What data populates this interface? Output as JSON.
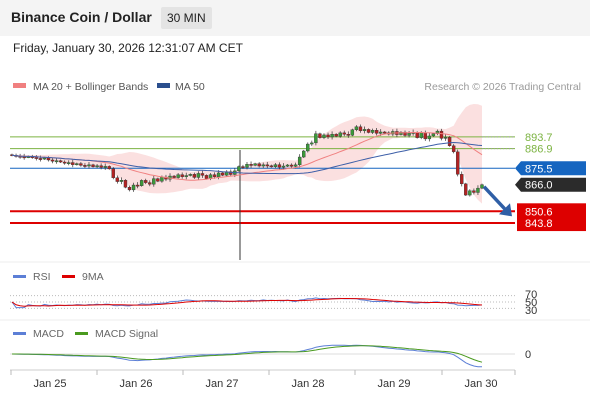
{
  "header": {
    "title": "Binance Coin / Dollar",
    "interval": "30 MIN"
  },
  "datetime": "Friday, January 30, 2026 12:31:07 AM CET",
  "legend": {
    "items": [
      {
        "label": "MA 20 + Bollinger Bands",
        "color": "#f08080"
      },
      {
        "label": "MA 50",
        "color": "#2b4f8e"
      }
    ],
    "credit": "Research © 2026 Trading Central"
  },
  "colors": {
    "up": "#3a9a3a",
    "down": "#b22222",
    "resistance": "#7cb342",
    "pivot": "#1565c0",
    "support": "#dd0000",
    "bands": "#f7c6c6",
    "ma50": "#3d5fa8"
  },
  "chart_data": {
    "type": "candlestick",
    "x_ticks": [
      "Jan 25",
      "Jan 26",
      "Jan 27",
      "Jan 28",
      "Jan 29",
      "Jan 30"
    ],
    "ylim": [
      834,
      915
    ],
    "closes": [
      883,
      882.5,
      882.2,
      881.9,
      882.3,
      881.8,
      881.2,
      880.9,
      881.5,
      880.3,
      879.6,
      879.9,
      879.1,
      878.4,
      878.8,
      877.6,
      878.2,
      877.2,
      876.8,
      877.5,
      876.4,
      877.0,
      876.0,
      876.6,
      875.2,
      870.0,
      867.8,
      868.6,
      864.5,
      863.0,
      865.8,
      865.4,
      868.5,
      867.2,
      866.3,
      869.5,
      868.0,
      870.4,
      869.2,
      871.0,
      870.1,
      871.8,
      870.6,
      871.3,
      872.0,
      870.2,
      872.5,
      871.4,
      869.5,
      871.8,
      870.6,
      872.8,
      871.5,
      873.5,
      871.9,
      874.0,
      876.5,
      876.0,
      877.8,
      877.2,
      878.1,
      876.8,
      877.5,
      877.0,
      876.4,
      877.6,
      876.1,
      876.8,
      877.4,
      876.6,
      877.5,
      882.0,
      885.5,
      889.5,
      890.2,
      895.5,
      893.2,
      894.8,
      893.6,
      895.2,
      894.0,
      896.0,
      895.2,
      894.6,
      897.8,
      899.5,
      897.2,
      898.0,
      896.2,
      897.5,
      895.7,
      896.5,
      896.0,
      895.3,
      896.8,
      895.0,
      896.4,
      894.5,
      895.8,
      896.3,
      893.2,
      896.0,
      892.5,
      894.2,
      895.5,
      897.0,
      892.8,
      893.5,
      888.5,
      885.0,
      872.0,
      866.5,
      860.0,
      862.5,
      861.5,
      864.0,
      866.0
    ],
    "price_levels": [
      {
        "value": 893.7,
        "label": "893.7",
        "kind": "resistance"
      },
      {
        "value": 886.9,
        "label": "886.9",
        "kind": "resistance"
      },
      {
        "value": 875.5,
        "label": "875.5",
        "kind": "pivot"
      },
      {
        "value": 866.0,
        "label": "866.0",
        "kind": "last"
      },
      {
        "value": 850.6,
        "label": "850.6",
        "kind": "support"
      },
      {
        "value": 843.8,
        "label": "843.8",
        "kind": "support"
      }
    ],
    "rsi": {
      "legend": [
        "RSI",
        "9MA"
      ],
      "levels": [
        "70",
        "50",
        "30"
      ]
    },
    "macd": {
      "legend": [
        "MACD",
        "MACD Signal"
      ],
      "zero_label": "0"
    }
  }
}
